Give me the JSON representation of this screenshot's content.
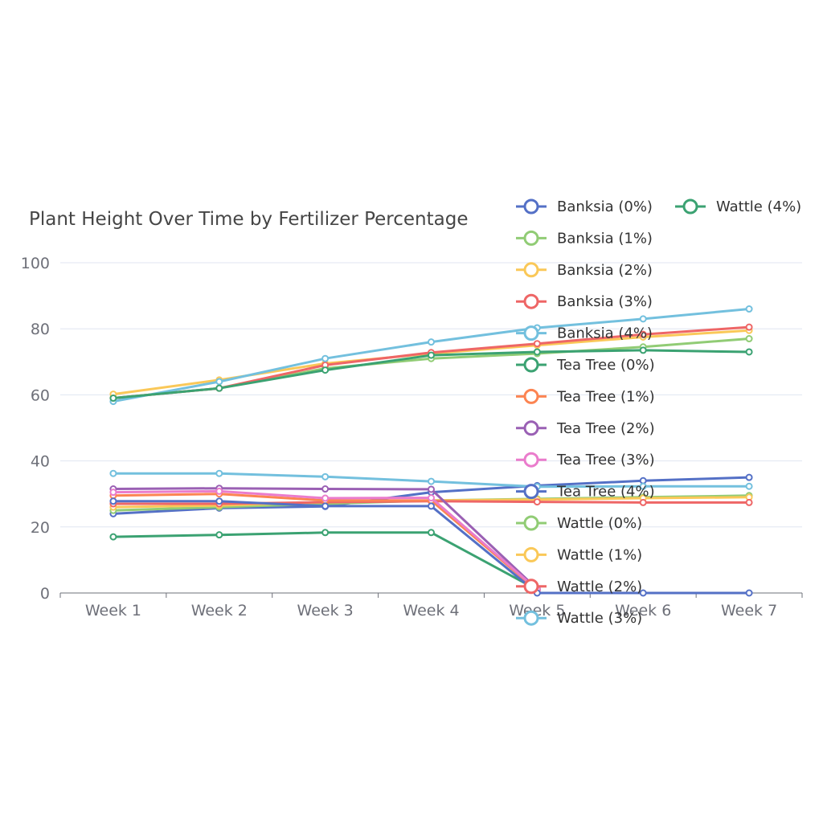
{
  "chart_data": {
    "type": "line",
    "title": "Plant Height Over Time by Fertilizer Percentage",
    "xlabel": "",
    "ylabel": "",
    "categories": [
      "Week 1",
      "Week 2",
      "Week 3",
      "Week 4",
      "Week 5",
      "Week 6",
      "Week 7"
    ],
    "ylim": [
      0,
      100
    ],
    "yticks": [
      0,
      20,
      40,
      60,
      80,
      100
    ],
    "grid": true,
    "legend_position": "top-right",
    "series": [
      {
        "name": "Banksia (0%)",
        "color": "#5470c6",
        "values": [
          24,
          25.7,
          26.2,
          30.5,
          32.5,
          34,
          35
        ]
      },
      {
        "name": "Banksia (1%)",
        "color": "#91cc75",
        "values": [
          25,
          26,
          27,
          28,
          28.5,
          29,
          29.5
        ]
      },
      {
        "name": "Banksia (2%)",
        "color": "#fac858",
        "values": [
          26,
          26.5,
          27.5,
          28,
          28.3,
          28.7,
          29
        ]
      },
      {
        "name": "Banksia (3%)",
        "color": "#ee6666",
        "values": [
          27,
          27,
          27.5,
          27.8,
          27.6,
          27.4,
          27.4
        ]
      },
      {
        "name": "Banksia (4%)",
        "color": "#73c0de",
        "values": [
          36.2,
          36.2,
          35.2,
          33.8,
          32.2,
          32.3,
          32.3
        ]
      },
      {
        "name": "Tea Tree (0%)",
        "color": "#3ba272",
        "values": [
          17,
          17.6,
          18.3,
          18.3,
          1,
          null,
          null
        ]
      },
      {
        "name": "Tea Tree (1%)",
        "color": "#fc8452",
        "values": [
          29.5,
          30,
          28,
          28,
          0.8,
          null,
          null
        ]
      },
      {
        "name": "Tea Tree (2%)",
        "color": "#9a60b4",
        "values": [
          31.5,
          31.7,
          31.5,
          31.4,
          1.2,
          null,
          null
        ]
      },
      {
        "name": "Tea Tree (3%)",
        "color": "#ea7ccc",
        "values": [
          30.5,
          30.8,
          28.7,
          28.8,
          1,
          null,
          null
        ]
      },
      {
        "name": "Tea Tree (4%)",
        "color": "#5470c6",
        "values": [
          27.8,
          27.8,
          26.3,
          26.3,
          0,
          0,
          0
        ]
      },
      {
        "name": "Wattle (0%)",
        "color": "#91cc75",
        "values": [
          59,
          62,
          68,
          71,
          72.5,
          74.5,
          77
        ]
      },
      {
        "name": "Wattle (1%)",
        "color": "#fac858",
        "values": [
          60.2,
          64.5,
          69.5,
          72.5,
          75,
          77.5,
          79.5
        ]
      },
      {
        "name": "Wattle (2%)",
        "color": "#ee6666",
        "values": [
          59,
          62,
          69,
          72.8,
          75.5,
          78.3,
          80.5
        ]
      },
      {
        "name": "Wattle (3%)",
        "color": "#73c0de",
        "values": [
          58,
          64,
          71,
          76,
          80.3,
          83,
          86
        ]
      },
      {
        "name": "Wattle (4%)",
        "color": "#3ba272",
        "values": [
          59,
          62,
          67.5,
          72,
          73,
          73.5,
          73
        ]
      }
    ]
  }
}
